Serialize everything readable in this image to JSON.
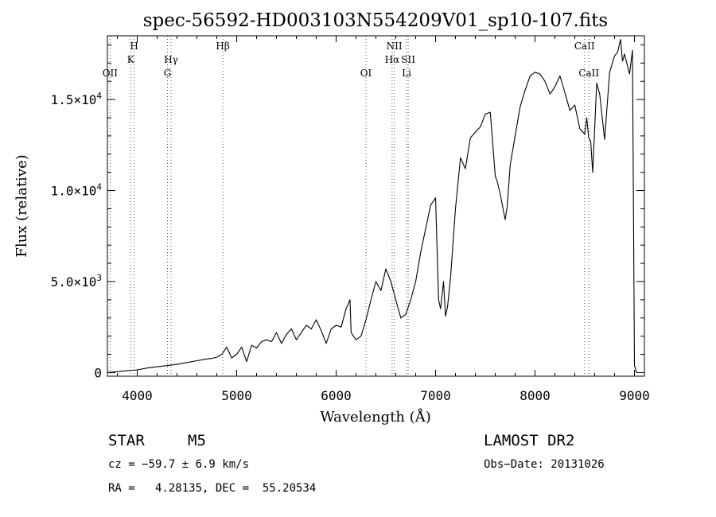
{
  "chart_data": {
    "type": "line",
    "title": "spec-56592-HD003103N554209V01_sp10-107.fits",
    "xlabel": "Wavelength (Å)",
    "ylabel": "Flux (relative)",
    "xlim": [
      3700,
      9100
    ],
    "ylim": [
      -200,
      18500
    ],
    "x_ticks": [
      4000,
      5000,
      6000,
      7000,
      8000,
      9000
    ],
    "x_tick_labels": [
      "4000",
      "5000",
      "6000",
      "7000",
      "8000",
      "9000"
    ],
    "y_ticks": [
      0,
      5000,
      10000,
      15000
    ],
    "y_tick_labels": [
      {
        "mantissa": "0",
        "exp": ""
      },
      {
        "mantissa": "5.0×10",
        "exp": "3"
      },
      {
        "mantissa": "1.0×10",
        "exp": "4"
      },
      {
        "mantissa": "1.5×10",
        "exp": "4"
      }
    ],
    "grid": false,
    "series": [
      {
        "x": [
          3700,
          3800,
          3900,
          4000,
          4100,
          4200,
          4300,
          4400,
          4500,
          4600,
          4700,
          4750,
          4800,
          4850,
          4900,
          4950,
          5000,
          5050,
          5100,
          5150,
          5200,
          5250,
          5300,
          5350,
          5400,
          5450,
          5500,
          5550,
          5600,
          5650,
          5700,
          5750,
          5800,
          5850,
          5900,
          5950,
          6000,
          6050,
          6100,
          6140,
          6150,
          6200,
          6250,
          6300,
          6350,
          6400,
          6450,
          6500,
          6550,
          6600,
          6650,
          6700,
          6750,
          6800,
          6850,
          6900,
          6950,
          7000,
          7030,
          7050,
          7080,
          7100,
          7120,
          7150,
          7200,
          7250,
          7300,
          7350,
          7400,
          7450,
          7500,
          7550,
          7600,
          7620,
          7650,
          7700,
          7720,
          7750,
          7800,
          7850,
          7900,
          7950,
          8000,
          8050,
          8100,
          8150,
          8200,
          8250,
          8300,
          8350,
          8400,
          8450,
          8500,
          8520,
          8540,
          8560,
          8580,
          8600,
          8620,
          8650,
          8700,
          8750,
          8800,
          8830,
          8860,
          8880,
          8900,
          8950,
          8980,
          9000,
          9020
        ],
        "y": [
          0,
          50,
          100,
          150,
          250,
          320,
          380,
          450,
          550,
          650,
          750,
          780,
          850,
          1000,
          1400,
          800,
          1000,
          1400,
          600,
          1500,
          1350,
          1700,
          1800,
          1700,
          2200,
          1600,
          2100,
          2400,
          1800,
          2200,
          2600,
          2400,
          2900,
          2300,
          1600,
          2400,
          2600,
          2500,
          3500,
          4000,
          2200,
          1800,
          2000,
          2900,
          4000,
          5000,
          4500,
          5700,
          5000,
          4000,
          3000,
          3200,
          4000,
          5000,
          6600,
          7900,
          9200,
          9600,
          4000,
          3500,
          5000,
          3100,
          3600,
          5200,
          9000,
          11800,
          11200,
          12900,
          13200,
          13500,
          14200,
          14300,
          10800,
          10500,
          9800,
          8400,
          9100,
          11400,
          13000,
          14600,
          15500,
          16300,
          16500,
          16400,
          16000,
          15300,
          15700,
          16300,
          15400,
          14400,
          14700,
          13400,
          13100,
          14000,
          12900,
          12700,
          11000,
          13400,
          15900,
          15300,
          12800,
          16500,
          17400,
          17600,
          18300,
          17100,
          17500,
          16400,
          17700,
          400,
          0
        ]
      }
    ],
    "annotations": [
      {
        "x": 3727,
        "labels": [
          "OII"
        ],
        "row": 3
      },
      {
        "x": 3934,
        "labels": [
          "K"
        ],
        "row": 2
      },
      {
        "x": 3969,
        "labels": [
          "H"
        ],
        "row": 1
      },
      {
        "x": 4304,
        "labels": [
          "G"
        ],
        "row": 3
      },
      {
        "x": 4340,
        "labels": [
          "Hγ"
        ],
        "row": 2
      },
      {
        "x": 4861,
        "labels": [
          "Hβ"
        ],
        "row": 1
      },
      {
        "x": 6300,
        "labels": [
          "OI"
        ],
        "row": 3
      },
      {
        "x": 6563,
        "labels": [
          "Hα"
        ],
        "row": 2
      },
      {
        "x": 6585,
        "labels": [
          "NII"
        ],
        "row": 1
      },
      {
        "x": 6708,
        "labels": [
          "Li"
        ],
        "row": 3
      },
      {
        "x": 6725,
        "labels": [
          "SII"
        ],
        "row": 2
      },
      {
        "x": 8498,
        "labels": [
          "CaII"
        ],
        "row": 1
      },
      {
        "x": 8542,
        "labels": [
          "CaII"
        ],
        "row": 3
      }
    ]
  },
  "info": {
    "object_class": "STAR",
    "subclass": "M5",
    "survey": "LAMOST DR2",
    "cz": "cz = −59.7 ± 6.9 km/s",
    "obs_date": "Obs−Date: 20131026",
    "coords": "RA =   4.28135, DEC =  55.20534"
  }
}
